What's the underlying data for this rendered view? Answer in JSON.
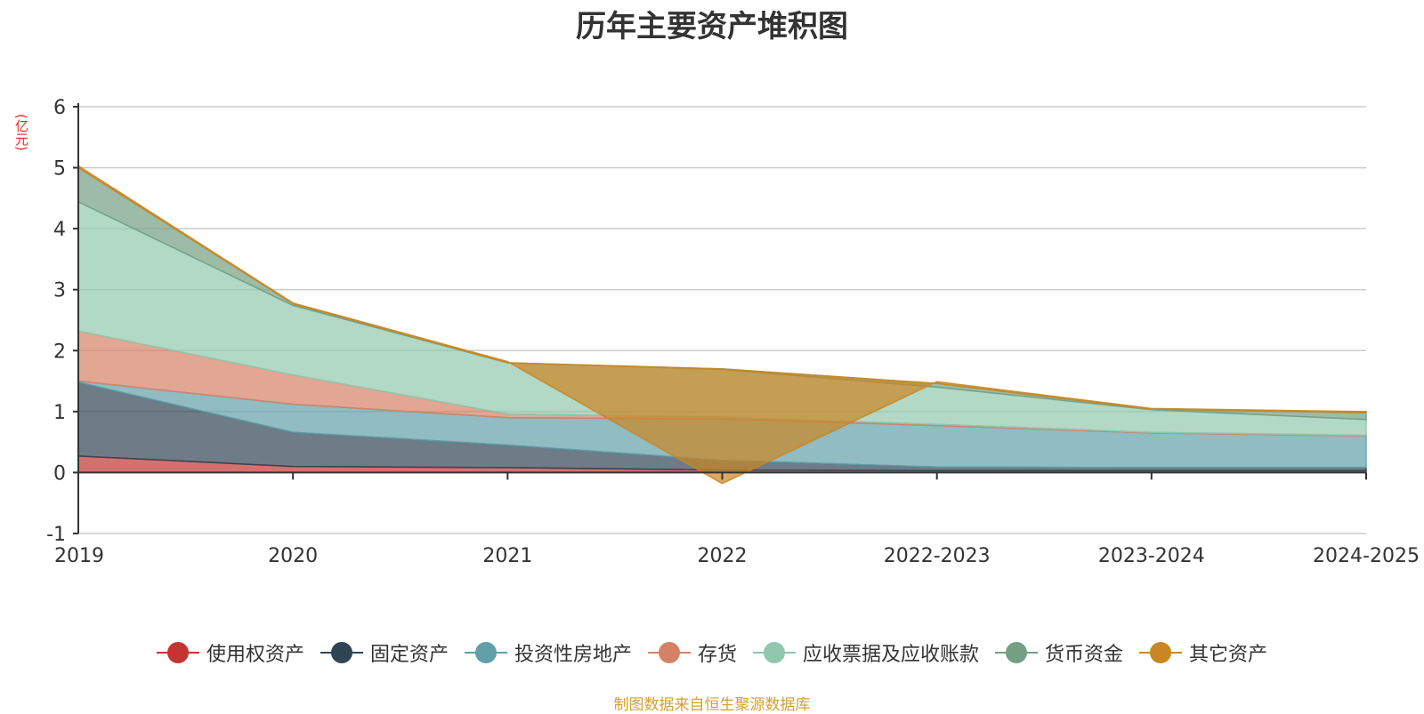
{
  "chart_data": {
    "type": "area",
    "stacked": true,
    "title": "历年主要资产堆积图",
    "unit_label": "(亿元)",
    "categories": [
      "2019",
      "2020",
      "2021",
      "2022",
      "2022-2023",
      "2023-2024",
      "2024-2025"
    ],
    "y_ticks": [
      "-1",
      "0",
      "1",
      "2",
      "3",
      "4",
      "5",
      "6"
    ],
    "ylim": [
      -1,
      6
    ],
    "grid": true,
    "legend_position": "bottom",
    "series": [
      {
        "name": "使用权资产",
        "color": "#c23531",
        "values": [
          0.27,
          0.1,
          0.08,
          0.04,
          0.03,
          0.03,
          0.03
        ]
      },
      {
        "name": "固定资产",
        "color": "#2f4554",
        "values": [
          1.21,
          0.56,
          0.37,
          0.16,
          0.06,
          0.05,
          0.05
        ]
      },
      {
        "name": "投资性房地产",
        "color": "#61a0a8",
        "values": [
          0.02,
          0.46,
          0.45,
          0.68,
          0.68,
          0.57,
          0.52
        ]
      },
      {
        "name": "存货",
        "color": "#d48265",
        "values": [
          0.82,
          0.48,
          0.06,
          0.03,
          0.02,
          0.01,
          0.01
        ]
      },
      {
        "name": "应收票据及应收账款",
        "color": "#91c7ae",
        "values": [
          2.12,
          1.14,
          0.84,
          0.78,
          0.61,
          0.37,
          0.26
        ]
      },
      {
        "name": "货币资金",
        "color": "#749f83",
        "values": [
          0.56,
          0.03,
          0.0,
          0.01,
          0.06,
          0.01,
          0.11
        ]
      },
      {
        "name": "其它资产",
        "color": "#ca8622",
        "values": [
          0.03,
          0.01,
          0.02,
          -1.88,
          0.03,
          0.01,
          0.02
        ]
      }
    ]
  },
  "source_note": "制图数据来自恒生聚源数据库"
}
